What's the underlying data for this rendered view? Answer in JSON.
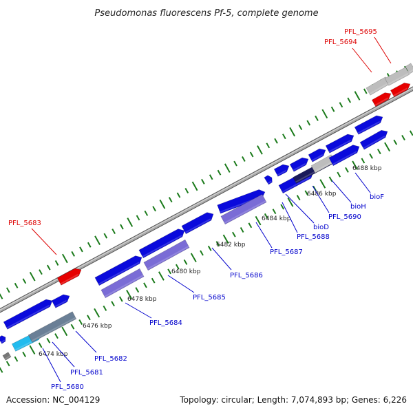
{
  "title": "Pseudomonas fluorescens Pf-5, complete genome",
  "footer": {
    "accession": "Accession: NC_004129",
    "summary": "Topology: circular; Length: 7,074,893 bp; Genes: 6,226"
  },
  "colors": {
    "label_blue": "#0000cc",
    "label_red": "#dd0000",
    "backbone": "#8c8c8c",
    "tick": "#1a7a1a",
    "gene_blue": "#0a0adc",
    "gene_lavender": "#7a6cd6",
    "gene_red": "#e60000",
    "gene_gray": "#bdbdbd",
    "gene_cyan": "#22bbee"
  },
  "ticks": [
    "6474 kbp",
    "6476 kbp",
    "6478 kbp",
    "6480 kbp",
    "6482 kbp",
    "6484 kbp",
    "6486 kbp",
    "6488 kbp"
  ],
  "gene_labels": [
    "PFL_5680",
    "PFL_5681",
    "PFL_5682",
    "PFL_5683",
    "PFL_5684",
    "PFL_5685",
    "PFL_5686",
    "PFL_5687",
    "bioD",
    "PFL_5688",
    "bioH",
    "PFL_5690",
    "bioF",
    "PFL_5694",
    "PFL_5695"
  ]
}
